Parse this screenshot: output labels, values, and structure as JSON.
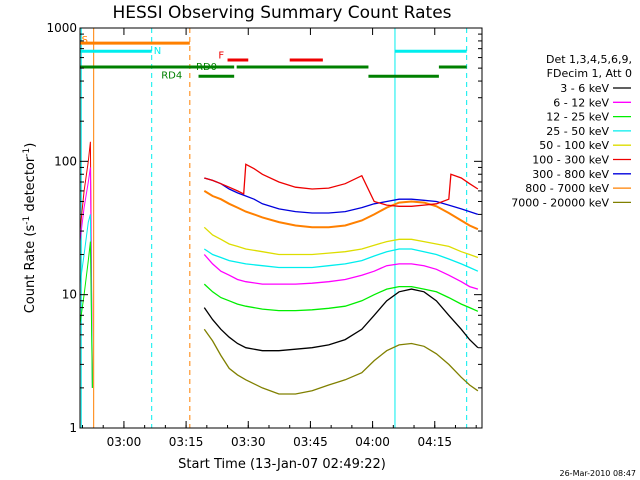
{
  "chart_data": {
    "type": "line",
    "title": "HESSI Observing Summary Count Rates",
    "xlabel": "Start Time (13-Jan-07 02:49:22)",
    "ylabel_main": "Count Rate (s",
    "ylabel_sup1": "-1",
    "ylabel_mid": " detector",
    "ylabel_sup2": "-1",
    "ylabel_end": ")",
    "x_unit": "minutes since 02:49:22",
    "xlim": [
      0,
      97
    ],
    "ylim": [
      1,
      1000
    ],
    "y_scale": "log",
    "x_ticks": [
      {
        "label": "03:00",
        "x": 10.6
      },
      {
        "label": "03:15",
        "x": 25.6
      },
      {
        "label": "03:30",
        "x": 40.6
      },
      {
        "label": "03:45",
        "x": 55.6
      },
      {
        "label": "04:00",
        "x": 70.6
      },
      {
        "label": "04:15",
        "x": 85.6
      }
    ],
    "y_ticks": [
      {
        "label": "1",
        "y": 1
      },
      {
        "label": "10",
        "y": 10
      },
      {
        "label": "100",
        "y": 100
      },
      {
        "label": "1000",
        "y": 1000
      }
    ],
    "legend_header": [
      "Det 1,3,4,5,6,9,",
      "FDecim 1, Att 0"
    ],
    "series": [
      {
        "name": "3 - 6 keV",
        "color": "#000000",
        "x": [
          30,
          32,
          34,
          36,
          38,
          40,
          44,
          48,
          52,
          56,
          60,
          64,
          68,
          71,
          74,
          77,
          80,
          83,
          86,
          89,
          92,
          94,
          96
        ],
        "y": [
          8,
          6.5,
          5.5,
          4.8,
          4.3,
          4,
          3.8,
          3.8,
          3.9,
          4,
          4.2,
          4.6,
          5.5,
          7,
          9,
          10.5,
          11,
          10.5,
          9,
          7,
          5.5,
          4.6,
          4
        ]
      },
      {
        "name": "6 - 12 keV",
        "color": "#ff00ff",
        "x": [
          30,
          32,
          34,
          36,
          38,
          40,
          44,
          48,
          52,
          56,
          60,
          64,
          68,
          71,
          74,
          77,
          80,
          83,
          86,
          89,
          92,
          94,
          96
        ],
        "y": [
          20,
          17,
          15,
          14,
          13,
          12.5,
          12,
          12,
          12,
          12.2,
          12.5,
          13,
          14,
          15,
          16.5,
          17,
          17,
          16.5,
          15.5,
          14,
          12.5,
          11.5,
          11
        ]
      },
      {
        "name": "12 - 25 keV",
        "color": "#00ee00",
        "x": [
          30,
          32,
          34,
          36,
          38,
          40,
          44,
          48,
          52,
          56,
          60,
          64,
          68,
          71,
          74,
          77,
          80,
          83,
          86,
          89,
          92,
          94,
          96
        ],
        "y": [
          12,
          10.5,
          9.5,
          9,
          8.5,
          8.2,
          7.8,
          7.6,
          7.6,
          7.7,
          7.9,
          8.2,
          9,
          10,
          11,
          11.5,
          11.5,
          11,
          10.5,
          9.5,
          8.5,
          8,
          7.5
        ]
      },
      {
        "name": "25 - 50 keV",
        "color": "#00eeee",
        "x": [
          30,
          32,
          34,
          36,
          38,
          40,
          44,
          48,
          52,
          56,
          60,
          64,
          68,
          71,
          74,
          77,
          80,
          83,
          86,
          89,
          92,
          94,
          96
        ],
        "y": [
          22,
          20,
          19,
          18,
          17.5,
          17,
          16.5,
          16,
          16,
          16,
          16.5,
          17,
          18,
          19.5,
          21,
          22,
          22,
          21,
          20,
          18.5,
          17,
          16,
          15
        ]
      },
      {
        "name": "50 - 100 keV",
        "color": "#dddd00",
        "x": [
          30,
          32,
          34,
          36,
          38,
          40,
          44,
          48,
          52,
          56,
          60,
          64,
          68,
          71,
          74,
          77,
          80,
          83,
          86,
          89,
          92,
          94,
          96
        ],
        "y": [
          32,
          28,
          26,
          24,
          23,
          22,
          21,
          20,
          20,
          20,
          20.5,
          21,
          22,
          23.5,
          25,
          26,
          26,
          25,
          24,
          23,
          21,
          20,
          19
        ]
      },
      {
        "name": "100 - 300 keV",
        "color": "#ee0000",
        "x": [
          30,
          32,
          34,
          36,
          38,
          39.5,
          40,
          42,
          44,
          48,
          52,
          56,
          60,
          64,
          68,
          71,
          74,
          77,
          80,
          83,
          86,
          89,
          89.5,
          92,
          94,
          96
        ],
        "y": [
          75,
          72,
          68,
          64,
          60,
          57,
          95,
          88,
          80,
          70,
          64,
          62,
          63,
          68,
          78,
          50,
          47,
          46,
          46,
          47,
          48,
          52,
          80,
          75,
          68,
          62
        ]
      },
      {
        "name": "300 - 800 keV",
        "color": "#0000dd",
        "x": [
          30,
          32,
          34,
          36,
          38,
          40,
          42,
          44,
          48,
          52,
          56,
          60,
          64,
          68,
          71,
          74,
          77,
          80,
          83,
          86,
          89,
          92,
          94,
          96
        ],
        "y": [
          75,
          72,
          68,
          62,
          58,
          55,
          52,
          48,
          44,
          42,
          41,
          41,
          42,
          45,
          48,
          50,
          52,
          52,
          51,
          50,
          47,
          44,
          42,
          40
        ]
      },
      {
        "name": "800 - 7000 keV",
        "color": "#ff8000",
        "x": [
          30,
          32,
          34,
          36,
          38,
          40,
          42,
          44,
          48,
          52,
          56,
          60,
          64,
          68,
          71,
          74,
          77,
          80,
          83,
          86,
          89,
          92,
          94,
          96
        ],
        "y": [
          60,
          55,
          52,
          48,
          45,
          42,
          40,
          38,
          35,
          33,
          32,
          32,
          33,
          36,
          40,
          45,
          49,
          50,
          49,
          46,
          41,
          36,
          33,
          31
        ]
      },
      {
        "name": "7000 - 20000 keV",
        "color": "#808000",
        "x": [
          30,
          32,
          34,
          36,
          38,
          40,
          44,
          48,
          52,
          56,
          60,
          64,
          68,
          71,
          74,
          77,
          80,
          83,
          86,
          89,
          92,
          94,
          96
        ],
        "y": [
          5.5,
          4.5,
          3.5,
          2.8,
          2.5,
          2.3,
          2,
          1.8,
          1.8,
          1.9,
          2.1,
          2.3,
          2.6,
          3.2,
          3.8,
          4.2,
          4.3,
          4.1,
          3.6,
          3,
          2.4,
          2.1,
          1.9
        ]
      }
    ],
    "early_spikes": [
      {
        "color": "#ee0000",
        "x": [
          0,
          1,
          2,
          2.5,
          3
        ],
        "y": [
          30,
          60,
          100,
          140,
          2
        ]
      },
      {
        "color": "#ff00ff",
        "x": [
          0,
          1,
          2,
          2.5,
          3
        ],
        "y": [
          25,
          45,
          70,
          90,
          2
        ]
      },
      {
        "color": "#00eeee",
        "x": [
          0,
          1,
          2,
          2.5,
          3
        ],
        "y": [
          12,
          20,
          35,
          40,
          2
        ]
      },
      {
        "color": "#00ee00",
        "x": [
          0,
          1,
          2,
          2.5,
          3
        ],
        "y": [
          6,
          10,
          18,
          25,
          2
        ]
      }
    ],
    "vertical_lines": [
      {
        "x": 0.3,
        "color": "#00eeee",
        "style": "solid"
      },
      {
        "x": 3.3,
        "color": "#ff8000",
        "style": "solid"
      },
      {
        "x": 17.3,
        "color": "#00eeee",
        "style": "dashed"
      },
      {
        "x": 26.5,
        "color": "#ff8000",
        "style": "dashed"
      },
      {
        "x": 76.0,
        "color": "#00eeee",
        "style": "solid"
      },
      {
        "x": 93.3,
        "color": "#00eeee",
        "style": "dashed"
      }
    ],
    "flag_bars": [
      {
        "color": "#ff8000",
        "x0": 0,
        "x1": 26.5,
        "y": 770,
        "width": 3
      },
      {
        "color": "#00eeee",
        "x0": 0,
        "x1": 17.3,
        "y": 670,
        "width": 3
      },
      {
        "color": "#00eeee",
        "x0": 76,
        "x1": 93.3,
        "y": 670,
        "width": 3
      },
      {
        "color": "#ee0000",
        "x0": 35.6,
        "x1": 40.6,
        "y": 575,
        "width": 3
      },
      {
        "color": "#ee0000",
        "x0": 50.6,
        "x1": 58.6,
        "y": 575,
        "width": 3
      },
      {
        "color": "#008000",
        "x0": 0,
        "x1": 37.2,
        "y": 510,
        "width": 3
      },
      {
        "color": "#008000",
        "x0": 37.8,
        "x1": 69.6,
        "y": 510,
        "width": 3
      },
      {
        "color": "#008000",
        "x0": 86.6,
        "x1": 93.3,
        "y": 510,
        "width": 3
      },
      {
        "color": "#008000",
        "x0": 28.6,
        "x1": 37.2,
        "y": 435,
        "width": 3
      },
      {
        "color": "#008000",
        "x0": 69.6,
        "x1": 86.6,
        "y": 435,
        "width": 3
      }
    ],
    "flag_labels": [
      {
        "text": "S",
        "color": "#ff8000",
        "x": 0.4,
        "y": 770
      },
      {
        "text": "N",
        "color": "#00eeee",
        "x": 17.8,
        "y": 640
      },
      {
        "text": "F",
        "color": "#ee0000",
        "x": 33.4,
        "y": 590
      },
      {
        "text": "RD0",
        "color": "#008000",
        "x": 28.0,
        "y": 485
      },
      {
        "text": "RD4",
        "color": "#008000",
        "x": 19.6,
        "y": 418
      }
    ],
    "stamp": "26-Mar-2010 08:47"
  }
}
